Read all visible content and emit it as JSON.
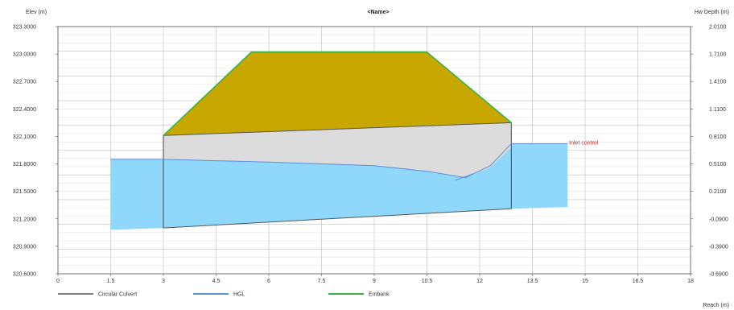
{
  "chart_data": {
    "type": "area",
    "title": "<Name>",
    "ylabel_left": "Elev (m)",
    "ylabel_right": "Hw Depth (m)",
    "xlabel": "Reach (m)",
    "x_ticks": [
      0,
      1.5,
      3,
      4.5,
      6,
      7.5,
      9,
      10.5,
      12,
      13.5,
      15,
      16.5,
      18
    ],
    "x_tick_labels": [
      "0",
      "1.5",
      "3",
      "4.5",
      "6",
      "7.5",
      "9",
      "10.5",
      "12",
      "13.5",
      "15",
      "16.5",
      "18"
    ],
    "xlim": [
      0,
      18
    ],
    "y_left_ticks": [
      320.6,
      320.9,
      321.2,
      321.5,
      321.8,
      322.1,
      322.4,
      322.7,
      323.0,
      323.3
    ],
    "y_left_tick_labels": [
      "320.6000",
      "320.9000",
      "321.2000",
      "321.5000",
      "321.8000",
      "322.1000",
      "322.4000",
      "322.7000",
      "323.0000",
      "323.3000"
    ],
    "ylim_left": [
      320.6,
      323.3
    ],
    "y_right_tick_labels": [
      "-0.6900",
      "-0.3900",
      "-0.0900",
      "0.2100",
      "0.5100",
      "0.8100",
      "1.1100",
      "1.4100",
      "1.7100",
      "2.0100"
    ],
    "ylim_right": [
      -0.69,
      2.01
    ],
    "grid": true,
    "legend_placement": "bottom-left",
    "legend": [
      {
        "label": "Circular Culvert",
        "color": "#7f7f7f"
      },
      {
        "label": "HGL",
        "color": "#5b8fe0"
      },
      {
        "label": "Embank",
        "color": "#3cb043"
      }
    ],
    "annotations": [
      {
        "text": "Inlet control",
        "x": 14.5,
        "y": 322.02
      }
    ],
    "embankment": {
      "color": "#c8a800",
      "polygon": [
        [
          3,
          322.11
        ],
        [
          5.5,
          323.02
        ],
        [
          10.5,
          323.02
        ],
        [
          12.9,
          322.25
        ],
        [
          3,
          322.11
        ]
      ],
      "crest_line": [
        [
          3,
          322.11
        ],
        [
          5.5,
          323.02
        ],
        [
          10.5,
          323.02
        ],
        [
          12.9,
          322.25
        ]
      ]
    },
    "culvert": {
      "color": "#dcdcdc",
      "top": [
        [
          3,
          322.11
        ],
        [
          12.9,
          322.25
        ]
      ],
      "bottom": [
        [
          3,
          321.1
        ],
        [
          12.9,
          321.31
        ]
      ]
    },
    "water": {
      "color": "#8fd7fb",
      "region": [
        [
          1.5,
          321.85
        ],
        [
          3,
          321.85
        ],
        [
          6,
          321.82
        ],
        [
          9,
          321.78
        ],
        [
          10.5,
          321.72
        ],
        [
          11.6,
          321.66
        ],
        [
          12.9,
          322.02
        ],
        [
          14.5,
          322.02
        ],
        [
          14.5,
          321.33
        ],
        [
          12.9,
          321.31
        ],
        [
          3,
          321.1
        ],
        [
          1.5,
          321.08
        ]
      ],
      "hgl_line": [
        [
          1.5,
          321.85
        ],
        [
          3,
          321.85
        ],
        [
          6,
          321.82
        ],
        [
          9,
          321.78
        ],
        [
          10.5,
          321.72
        ],
        [
          11.6,
          321.65
        ],
        [
          12.3,
          321.78
        ],
        [
          12.9,
          322.02
        ],
        [
          14.5,
          322.02
        ]
      ]
    }
  }
}
